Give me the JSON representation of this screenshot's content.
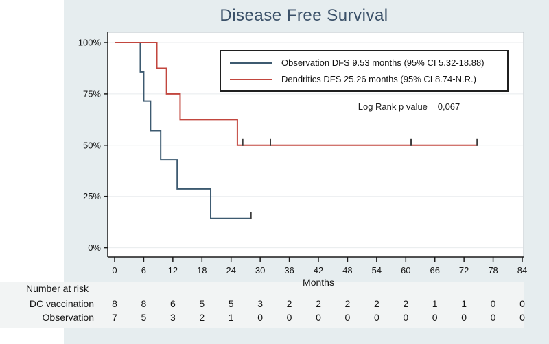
{
  "page": {
    "background": "#ffffff"
  },
  "canvas": {
    "background": "#e6edef"
  },
  "chart_data": {
    "type": "line",
    "subtype": "kaplan-meier-step",
    "title": "Disease Free Survival",
    "title_color": "#3a5068",
    "xlabel": "Months",
    "xlim": [
      0,
      84
    ],
    "x_ticks": [
      0,
      6,
      12,
      18,
      24,
      30,
      36,
      42,
      48,
      54,
      60,
      66,
      72,
      78,
      84
    ],
    "ylim_percent": [
      0,
      100
    ],
    "y_ticks_percent": [
      0,
      25,
      50,
      75,
      100
    ],
    "y_tick_labels": [
      "0%",
      "25%",
      "50%",
      "75%",
      "100%"
    ],
    "grid": "horizontal-faint",
    "gridline_color": "#e8ebed",
    "axis_color": "#1a1a1a",
    "plot_border_color": "#b6bfc5",
    "plot_background": "#ffffff",
    "legend_position": "upper-right-inside",
    "annotation": "Log Rank p value = 0,067",
    "censor_tick_color": "#3c3c3c",
    "series": [
      {
        "name": "Observation",
        "legend_label": "Observation DFS 9.53 months (95% CI 5.32-18.88)",
        "color": "#3d5a70",
        "start": [
          0,
          100
        ],
        "steps": [
          [
            5.3,
            85.7
          ],
          [
            6.0,
            71.4
          ],
          [
            7.4,
            57.1
          ],
          [
            9.5,
            42.9
          ],
          [
            12.9,
            28.6
          ],
          [
            19.8,
            14.3
          ]
        ],
        "end_time": 28.1,
        "censor_times": [
          28.1
        ]
      },
      {
        "name": "Dendritics",
        "legend_label": "Dendritics DFS 25.26 months (95% CI 8.74-N.R.)",
        "color": "#c2463e",
        "start": [
          0,
          100
        ],
        "steps": [
          [
            8.7,
            87.5
          ],
          [
            10.7,
            75.0
          ],
          [
            13.5,
            62.5
          ],
          [
            25.3,
            50.0
          ]
        ],
        "end_time": 74.7,
        "censor_times": [
          26.4,
          32.1,
          61.1,
          74.7
        ]
      }
    ],
    "risk_table": {
      "title": "Number at risk",
      "rows": [
        {
          "label": "DC vaccination",
          "values": [
            8,
            8,
            6,
            5,
            5,
            3,
            2,
            2,
            2,
            2,
            2,
            1,
            1,
            0,
            0
          ]
        },
        {
          "label": "Observation",
          "values": [
            7,
            5,
            3,
            2,
            1,
            0,
            0,
            0,
            0,
            0,
            0,
            0,
            0,
            0,
            0
          ]
        }
      ]
    }
  }
}
